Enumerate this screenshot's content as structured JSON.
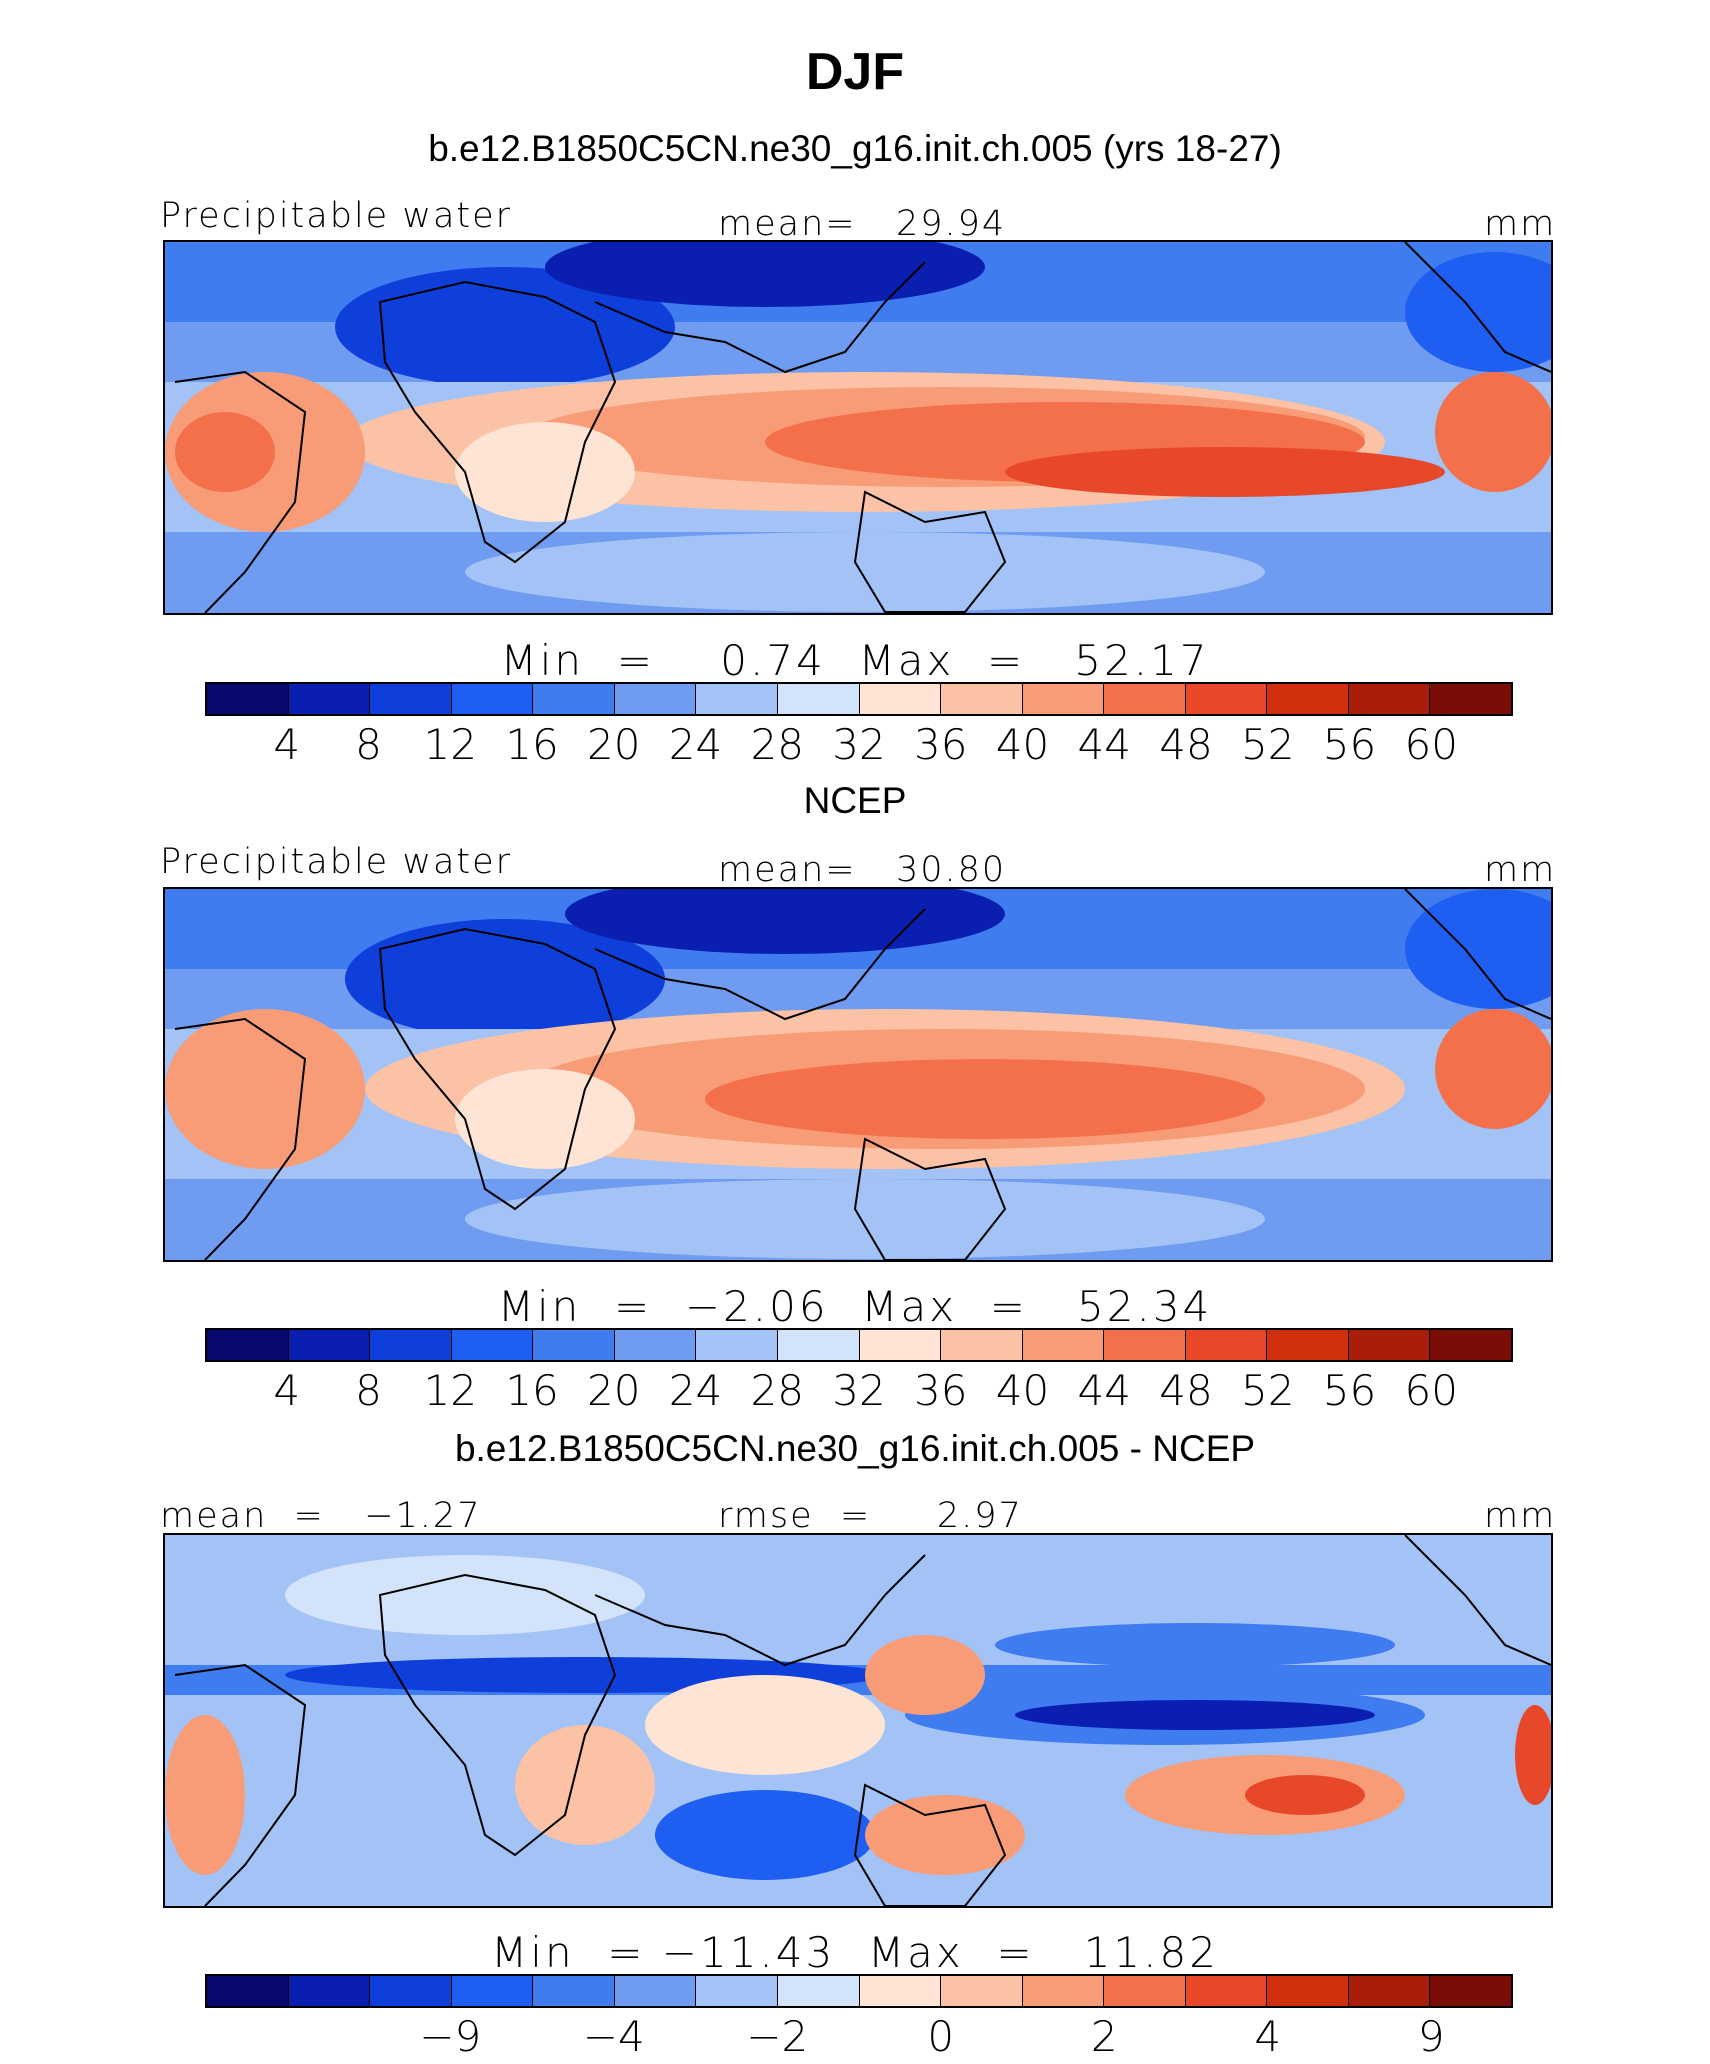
{
  "title": "DJF",
  "palette": [
    "#08086e",
    "#0a1fb0",
    "#0f3fdb",
    "#1e5ef0",
    "#3f7cf0",
    "#6f9cf0",
    "#a3c2f5",
    "#d3e4fa",
    "#fde4d4",
    "#fbc2a6",
    "#f89c78",
    "#f4704a",
    "#e8482a",
    "#d1300f",
    "#a91d0a",
    "#7a0d05"
  ],
  "panels": [
    {
      "title": "b.e12.B1850C5CN.ne30_g16.init.ch.005 (yrs 18-27)",
      "left_label": "Precipitable water",
      "center_label": "mean=   29.94",
      "right_label": "mm",
      "minmax": "Min  =    0.74  Max  =   52.17",
      "tick_labels": [
        "4",
        "8",
        "12",
        "16",
        "20",
        "24",
        "28",
        "32",
        "36",
        "40",
        "44",
        "48",
        "52",
        "56",
        "60"
      ]
    },
    {
      "title": "NCEP",
      "left_label": "Precipitable water",
      "center_label": "mean=   30.80",
      "right_label": "mm",
      "minmax": "Min  =  −2.06  Max  =   52.34",
      "tick_labels": [
        "4",
        "8",
        "12",
        "16",
        "20",
        "24",
        "28",
        "32",
        "36",
        "40",
        "44",
        "48",
        "52",
        "56",
        "60"
      ]
    },
    {
      "title": "b.e12.B1850C5CN.ne30_g16.init.ch.005 - NCEP",
      "left_label": "mean  =   −1.27",
      "center_label": "rmse  =     2.97",
      "right_label": "mm",
      "minmax": "Min  = −11.43  Max  =   11.82",
      "tick_labels": [
        "−9",
        "−4",
        "−2",
        "0",
        "2",
        "4",
        "9"
      ]
    }
  ],
  "chart_data": [
    {
      "type": "heatmap",
      "title": "b.e12.B1850C5CN.ne30_g16.init.ch.005 (yrs 18-27)",
      "variable": "Precipitable water",
      "units": "mm",
      "mean": 29.94,
      "min": 0.74,
      "max": 52.17,
      "contour_levels": [
        4,
        8,
        12,
        16,
        20,
        24,
        28,
        32,
        36,
        40,
        44,
        48,
        52,
        56,
        60
      ]
    },
    {
      "type": "heatmap",
      "title": "NCEP",
      "variable": "Precipitable water",
      "units": "mm",
      "mean": 30.8,
      "min": -2.06,
      "max": 52.34,
      "contour_levels": [
        4,
        8,
        12,
        16,
        20,
        24,
        28,
        32,
        36,
        40,
        44,
        48,
        52,
        56,
        60
      ]
    },
    {
      "type": "heatmap",
      "title": "b.e12.B1850C5CN.ne30_g16.init.ch.005 - NCEP",
      "units": "mm",
      "mean": -1.27,
      "rmse": 2.97,
      "min": -11.43,
      "max": 11.82,
      "contour_levels": [
        -9,
        -4,
        -2,
        0,
        2,
        4,
        9
      ]
    }
  ]
}
